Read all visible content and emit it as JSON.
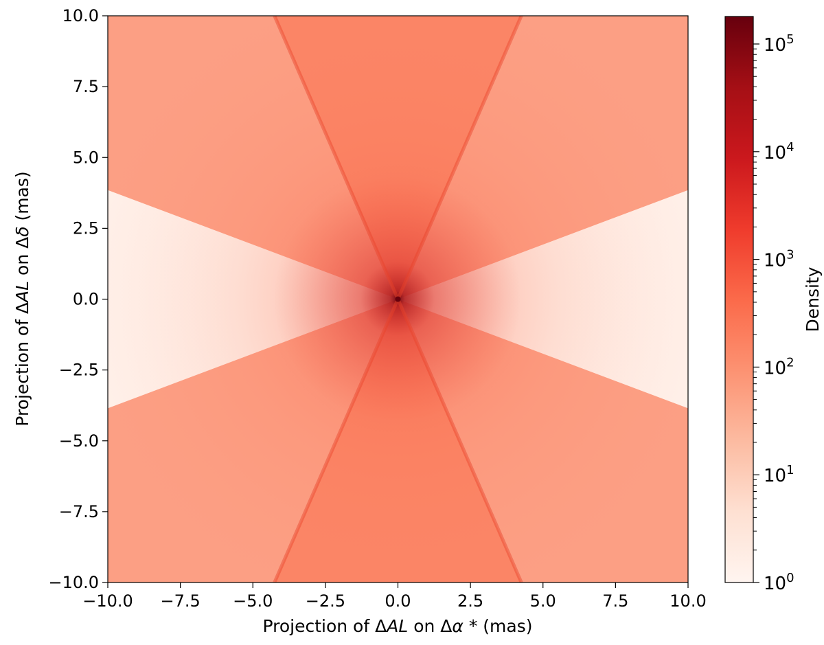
{
  "chart_data": {
    "type": "heatmap",
    "title": "",
    "xlabel": {
      "prefix": "Projection of ",
      "delta1": "Δ",
      "var1": "AL",
      "mid": " on ",
      "delta2": "Δ",
      "var2": "α",
      "star": " *",
      "suffix": " (mas)"
    },
    "ylabel": {
      "prefix": "Projection of ",
      "delta1": "Δ",
      "var1": "AL",
      "mid": " on ",
      "delta2": "Δ",
      "var2": "δ",
      "suffix": " (mas)"
    },
    "xlim": [
      -10.0,
      10.0
    ],
    "ylim": [
      -10.0,
      10.0
    ],
    "x_ticks": [
      -10.0,
      -7.5,
      -5.0,
      -2.5,
      0.0,
      2.5,
      5.0,
      7.5,
      10.0
    ],
    "x_tick_labels": [
      "−10.0",
      "−7.5",
      "−5.0",
      "−2.5",
      "0.0",
      "2.5",
      "5.0",
      "7.5",
      "10.0"
    ],
    "y_ticks": [
      10.0,
      7.5,
      5.0,
      2.5,
      0.0,
      -2.5,
      -5.0,
      -7.5,
      -10.0
    ],
    "y_tick_labels": [
      "10.0",
      "7.5",
      "5.0",
      "2.5",
      "0.0",
      "−2.5",
      "−5.0",
      "−7.5",
      "−10.0"
    ],
    "grid": false,
    "colorbar": {
      "label": "Density",
      "scale": "log",
      "range": [
        1,
        180000
      ],
      "ticks": [
        1,
        10,
        100,
        1000,
        10000,
        100000
      ],
      "tick_base": "10",
      "tick_exponents": [
        "0",
        "1",
        "2",
        "3",
        "4",
        "5"
      ],
      "colormap": "Reds",
      "colors": [
        "#fff5f0",
        "#fee0d2",
        "#fcbba1",
        "#fc9272",
        "#fb6a4a",
        "#ef3b2c",
        "#cb181d",
        "#a50f15",
        "#67000d"
      ]
    },
    "structure": {
      "center": [
        0.0,
        0.0
      ],
      "peak_density": 180000,
      "sparse_wedge_boundary_slope": 0.385,
      "ridge_line_slope": 2.35,
      "dense_density": 300,
      "sparse_density": 4
    }
  }
}
